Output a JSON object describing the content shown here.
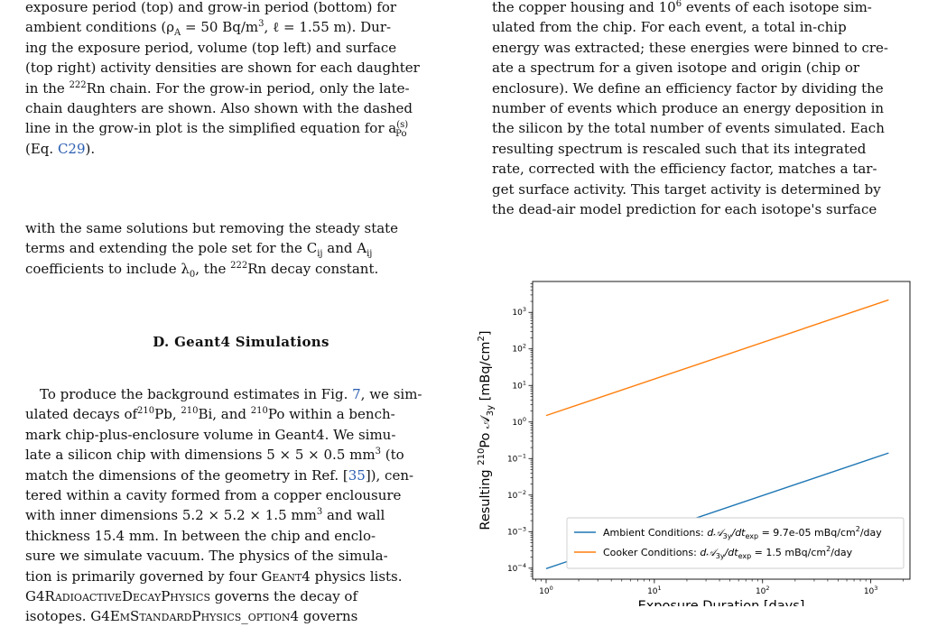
{
  "left": {
    "caption": {
      "l1": "exposure period (top) and grow-in period (bottom) for",
      "l2a": "ambient conditions (ρ",
      "l2sub": "A",
      "l2b": " = 50 Bq/m",
      "l2sup": "3",
      "l2c": ", ℓ = 1.55 m). Dur-",
      "l3": "ing the exposure period, volume (top left) and surface",
      "l4": "(top right) activity densities are shown for each daughter",
      "l5a": "in the ",
      "l5sup": "222",
      "l5b": "Rn chain. For the grow-in period, only the late-",
      "l6": "chain daughters are shown. Also shown with the dashed",
      "l7a": "line in the grow-in plot is the simplified equation for a",
      "l7sup": "(s)",
      "l7sub": "Po",
      "l8a": "(Eq. ",
      "l8ref": "C29",
      "l8b": ")."
    },
    "cont": {
      "l1": "with the same solutions but removing the steady state",
      "l2a": "terms and extending the pole set for the C",
      "l2sub1": "ij",
      "l2b": " and A",
      "l2sub2": "ij",
      "l3a": "coefficients to include λ",
      "l3sub": "0",
      "l3b": ", the ",
      "l3sup": "222",
      "l3c": "Rn decay constant."
    },
    "heading": "D.   Geant4 Simulations",
    "body": {
      "l1a": "To produce the background estimates in Fig. ",
      "l1ref": "7",
      "l1b": ", we sim-",
      "l2a": "ulated decays of ",
      "l2s1": "210",
      "l2b": "Pb, ",
      "l2s2": "210",
      "l2c": "Bi, and ",
      "l2s3": "210",
      "l2d": "Po within a bench-",
      "l3": "mark chip-plus-enclosure volume in Geant4. We simu-",
      "l4a": "late a silicon chip with dimensions 5 × 5 × 0.5 mm",
      "l4sup": "3",
      "l4b": " (to",
      "l5a": "match the dimensions of the geometry in Ref. [",
      "l5ref": "35",
      "l5b": "]), cen-",
      "l6": "tered within a cavity formed from a copper enclousure",
      "l7a": "with inner dimensions 5.2 × 5.2 × 1.5 mm",
      "l7sup": "3",
      "l7b": " and wall",
      "l8": "thickness 15.4 mm.  In between the chip and enclo-",
      "l9": "sure we simulate vacuum. The physics of the simula-",
      "l10a": "tion is primarily governed by four ",
      "l10sc": "Geant4",
      "l10b": " physics lists.",
      "l11a": "G4",
      "l11sc": "RadioactiveDecayPhysics",
      "l11b": " governs the decay of",
      "l12a": "isotopes.  G4",
      "l12sc": "EmStandardPhysics_option4",
      "l12b": " governs"
    }
  },
  "right": {
    "l1a": "the copper housing and 10",
    "l1sup": "6",
    "l1b": " events of each isotope sim-",
    "l2": "ulated from the chip.  For each event, a total in-chip",
    "l3": "energy was extracted; these energies were binned to cre-",
    "l4": "ate a spectrum for a given isotope and origin (chip or",
    "l5": "enclosure). We define an efficiency factor by dividing the",
    "l6": "number of events which produce an energy deposition in",
    "l7": "the silicon by the total number of events simulated. Each",
    "l8": "resulting spectrum is rescaled such that its integrated",
    "l9": "rate, corrected with the efficiency factor, matches a tar-",
    "l10": "get surface activity. This target activity is determined by",
    "l11": "the dead-air model prediction for each isotope's surface"
  },
  "chart_data": {
    "type": "line",
    "xscale": "log",
    "yscale": "log",
    "xlim": [
      0.75,
      2300
    ],
    "ylim": [
      5e-05,
      7000
    ],
    "xlabel": "Exposure Duration [days]",
    "ylabel_a": "Resulting ",
    "ylabel_sup": "210",
    "ylabel_b": "Po 𝒜",
    "ylabel_sub": "3y",
    "ylabel_c": " [mBq/cm",
    "ylabel_sup2": "2",
    "ylabel_d": "]",
    "xticks": [
      {
        "value": 1,
        "base": "10",
        "exp": "0"
      },
      {
        "value": 10,
        "base": "10",
        "exp": "1"
      },
      {
        "value": 100,
        "base": "10",
        "exp": "2"
      },
      {
        "value": 1000,
        "base": "10",
        "exp": "3"
      }
    ],
    "yticks": [
      {
        "value": 0.0001,
        "base": "10",
        "exp": "−4"
      },
      {
        "value": 0.001,
        "base": "10",
        "exp": "−3"
      },
      {
        "value": 0.01,
        "base": "10",
        "exp": "−2"
      },
      {
        "value": 0.1,
        "base": "10",
        "exp": "−1"
      },
      {
        "value": 1,
        "base": "10",
        "exp": "0"
      },
      {
        "value": 10,
        "base": "10",
        "exp": "1"
      },
      {
        "value": 100,
        "base": "10",
        "exp": "2"
      },
      {
        "value": 1000,
        "base": "10",
        "exp": "3"
      }
    ],
    "series": [
      {
        "color": "#1f77b4",
        "x": [
          1,
          1461
        ],
        "y": [
          9.72e-05,
          0.142
        ],
        "legend_a": "Ambient Conditions: ",
        "legend_m": "d𝒜",
        "legend_sub": "3y",
        "legend_m2": "/dt",
        "legend_sub2": "exp",
        "legend_b": " = 9.7e-05 mBq/cm",
        "legend_sup": "2",
        "legend_c": "/day"
      },
      {
        "color": "#ff7f0e",
        "x": [
          1,
          1461
        ],
        "y": [
          1.5,
          2191
        ],
        "legend_a": "Cooker Conditions: ",
        "legend_m": "d𝒜",
        "legend_sub": "3y",
        "legend_m2": "/dt",
        "legend_sub2": "exp",
        "legend_b": " = 1.5 mBq/cm",
        "legend_sup": "2",
        "legend_c": "/day"
      }
    ],
    "legend_position": "lower-right",
    "grid": false
  }
}
